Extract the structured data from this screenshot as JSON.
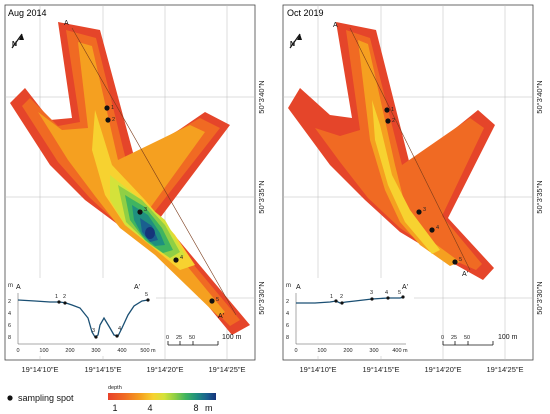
{
  "panels": [
    {
      "title": "Aug 2014",
      "profile_start": "A",
      "profile_end": "A'",
      "sampling_spots": [
        "1",
        "2",
        "3",
        "4",
        "5"
      ],
      "profile": {
        "x_ticks": [
          "0",
          "100",
          "200",
          "300",
          "400",
          "500 m"
        ],
        "y_unit": "m",
        "y_ticks": [
          "2",
          "4",
          "6",
          "8"
        ],
        "spot_labels": [
          "1",
          "2",
          "3",
          "4",
          "5"
        ]
      },
      "scale": {
        "ticks": [
          "0",
          "25",
          "50"
        ],
        "unit": "100 m"
      },
      "lon_labels": [
        "19°14'10\"E",
        "19°14'15\"E",
        "19°14'20\"E",
        "19°14'25\"E"
      ],
      "lat_labels": [
        "50°3'40\"N",
        "50°3'35\"N",
        "50°3'30\"N"
      ],
      "north_symbol": "N"
    },
    {
      "title": "Oct 2019",
      "profile_start": "A",
      "profile_end": "A'",
      "sampling_spots": [
        "1",
        "2",
        "3",
        "4",
        "5"
      ],
      "profile": {
        "x_ticks": [
          "0",
          "100",
          "200",
          "300",
          "400 m"
        ],
        "y_unit": "m",
        "y_ticks": [
          "2",
          "4",
          "6",
          "8"
        ],
        "spot_labels": [
          "1",
          "2",
          "3",
          "4",
          "5"
        ]
      },
      "scale": {
        "ticks": [
          "0",
          "25",
          "50"
        ],
        "unit": "100 m"
      },
      "lon_labels": [
        "19°14'10\"E",
        "19°14'15\"E",
        "19°14'20\"E",
        "19°14'25\"E"
      ],
      "lat_labels": [
        "50°3'40\"N",
        "50°3'35\"N",
        "50°3'30\"N"
      ],
      "north_symbol": "N"
    }
  ],
  "legend": {
    "sampling_label": "sampling spot",
    "depth_title": "depth",
    "depth_ticks": [
      "1",
      "4",
      "8"
    ],
    "depth_unit": "m",
    "colors": [
      "#e8412a",
      "#f06a23",
      "#f5a020",
      "#f7d230",
      "#d4e23a",
      "#8fcf45",
      "#3fb460",
      "#1f8f7f",
      "#1a5f8f",
      "#15347a"
    ]
  }
}
